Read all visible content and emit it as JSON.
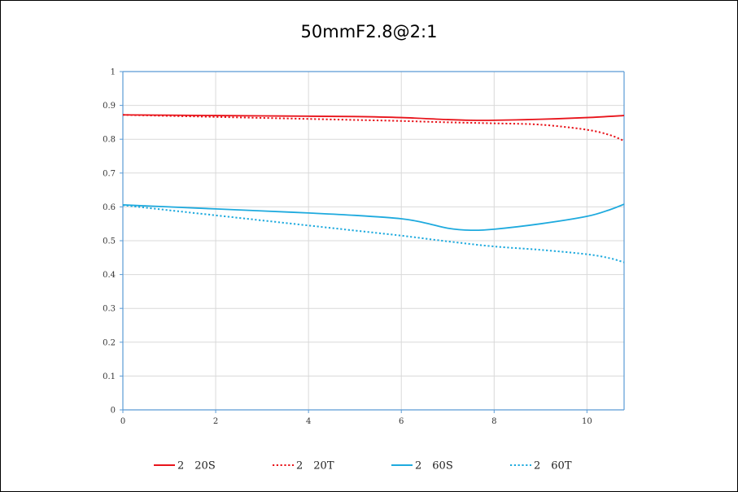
{
  "chart_data": {
    "type": "line",
    "title": "50mmF2.8@2:1",
    "xlabel": "",
    "ylabel": "",
    "xlim": [
      0,
      10.8
    ],
    "ylim": [
      0,
      1
    ],
    "x_ticks": [
      0,
      2,
      4,
      6,
      8,
      10
    ],
    "x_tick_labels": [
      "0",
      "2",
      "4",
      "6",
      "8",
      "10"
    ],
    "y_ticks": [
      0,
      0.1,
      0.2,
      0.3,
      0.4,
      0.5,
      0.6,
      0.7,
      0.8,
      0.9,
      1
    ],
    "y_tick_labels": [
      "0",
      "0.1",
      "0.2",
      "0.3",
      "0.4",
      "0.5",
      "0.6",
      "0.7",
      "0.8",
      "0.9",
      "1"
    ],
    "grid": true,
    "legend_position": "bottom",
    "series": [
      {
        "name": "2　20S",
        "color": "#e8141b",
        "dash": "solid",
        "x": [
          0,
          1,
          2,
          3,
          4,
          5,
          6,
          7,
          7.5,
          8,
          9,
          10,
          10.8
        ],
        "y": [
          0.872,
          0.871,
          0.87,
          0.869,
          0.868,
          0.867,
          0.864,
          0.858,
          0.856,
          0.856,
          0.859,
          0.864,
          0.87
        ]
      },
      {
        "name": "2　20T",
        "color": "#e8141b",
        "dash": "dotted",
        "x": [
          0,
          1,
          2,
          3,
          4,
          5,
          6,
          7,
          8,
          9,
          10,
          10.5,
          10.8
        ],
        "y": [
          0.872,
          0.869,
          0.866,
          0.863,
          0.86,
          0.857,
          0.854,
          0.85,
          0.847,
          0.843,
          0.828,
          0.812,
          0.795
        ]
      },
      {
        "name": "2　60S",
        "color": "#1eaade",
        "dash": "solid",
        "x": [
          0,
          1,
          2,
          3,
          4,
          5,
          6,
          6.5,
          7,
          7.5,
          8,
          9,
          10,
          10.5,
          10.8
        ],
        "y": [
          0.606,
          0.6,
          0.594,
          0.588,
          0.582,
          0.575,
          0.565,
          0.553,
          0.537,
          0.531,
          0.534,
          0.55,
          0.572,
          0.592,
          0.608
        ]
      },
      {
        "name": "2　60T",
        "color": "#1eaade",
        "dash": "dotted",
        "x": [
          0,
          1,
          2,
          3,
          4,
          5,
          6,
          7,
          8,
          9,
          10,
          10.5,
          10.8
        ],
        "y": [
          0.605,
          0.59,
          0.575,
          0.56,
          0.545,
          0.53,
          0.515,
          0.498,
          0.483,
          0.473,
          0.46,
          0.448,
          0.436
        ]
      }
    ]
  }
}
